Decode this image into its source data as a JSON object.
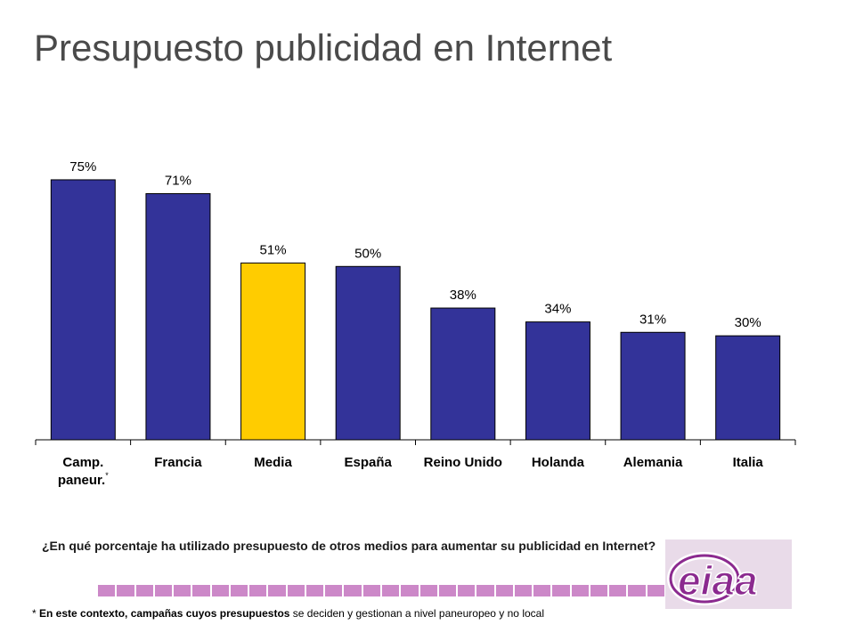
{
  "title": "Presupuesto publicidad en Internet",
  "chart_data": {
    "type": "bar",
    "categories": [
      "Camp. paneur.",
      "Francia",
      "Media",
      "España",
      "Reino Unido",
      "Holanda",
      "Alemania",
      "Italia"
    ],
    "category_lines": [
      [
        "Camp.",
        "paneur."
      ],
      [
        "Francia"
      ],
      [
        "Media"
      ],
      [
        "España"
      ],
      [
        "Reino Unido"
      ],
      [
        "Holanda"
      ],
      [
        "Alemania"
      ],
      [
        "Italia"
      ]
    ],
    "category_note_marker": "*",
    "values": [
      75,
      71,
      51,
      50,
      38,
      34,
      31,
      30
    ],
    "value_labels": [
      "75%",
      "71%",
      "51%",
      "50%",
      "38%",
      "34%",
      "31%",
      "30%"
    ],
    "ylim": [
      0,
      85
    ],
    "bar_color": "#333399",
    "highlight_category": "Media",
    "highlight_color": "#ffcc00",
    "grid": false,
    "legend": "none"
  },
  "question": "¿En qué porcentaje ha utilizado presupuesto de otros medios para aumentar su publicidad en Internet?",
  "footnote": {
    "marker": "*",
    "bold_text": "En este contexto, campañas cuyos presupuestos",
    "regular_text": "se deciden y gestionan a nivel paneuropeo y no local"
  },
  "logo": {
    "text": "eiaa",
    "colors": {
      "purple": "#8b2a8f",
      "background": "#e9dbe9"
    }
  },
  "strip_segments": 30,
  "strip_color": "#cc88c8"
}
